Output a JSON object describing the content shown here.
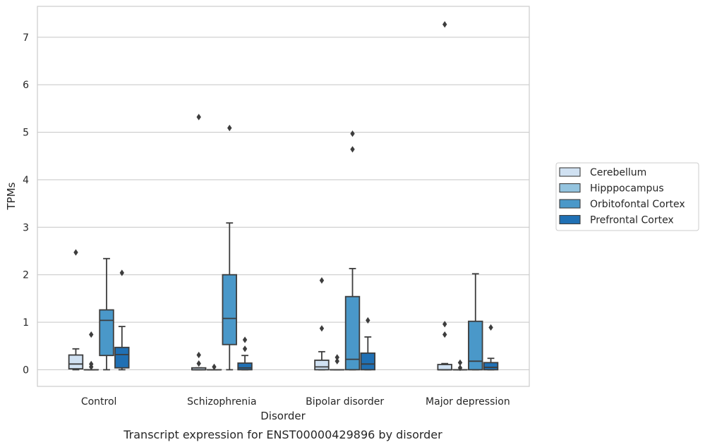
{
  "chart_data": {
    "type": "box",
    "title": "",
    "caption": "Transcript expression for ENST00000429896 by disorder",
    "xlabel": "Disorder",
    "ylabel": "TPMs",
    "ylim": [
      -0.35,
      7.65
    ],
    "yticks": [
      0,
      1,
      2,
      3,
      4,
      5,
      6,
      7
    ],
    "grid": "horizontal",
    "legend_position": "right",
    "categories": [
      "Control",
      "Schizophrenia",
      "Bipolar disorder",
      "Major depression"
    ],
    "series": [
      {
        "name": "Cerebellum",
        "color": "#d0e1f2",
        "boxes": [
          {
            "q1": 0.02,
            "median": 0.12,
            "q3": 0.31,
            "whisker_low": 0.0,
            "whisker_high": 0.44,
            "outliers": [
              2.47
            ]
          },
          {
            "q1": 0.0,
            "median": 0.0,
            "q3": 0.04,
            "whisker_low": 0.0,
            "whisker_high": 0.04,
            "outliers": [
              0.13,
              0.31,
              5.32
            ]
          },
          {
            "q1": 0.0,
            "median": 0.06,
            "q3": 0.2,
            "whisker_low": 0.0,
            "whisker_high": 0.38,
            "outliers": [
              0.87,
              1.88
            ]
          },
          {
            "q1": 0.0,
            "median": 0.0,
            "q3": 0.11,
            "whisker_low": 0.0,
            "whisker_high": 0.13,
            "outliers": [
              0.74,
              0.96,
              7.27
            ]
          }
        ]
      },
      {
        "name": "Hipppocampus",
        "color": "#94c4df",
        "boxes": [
          {
            "q1": 0.0,
            "median": 0.0,
            "q3": 0.0,
            "whisker_low": 0.0,
            "whisker_high": 0.0,
            "outliers": [
              0.06,
              0.12,
              0.74
            ]
          },
          {
            "q1": 0.0,
            "median": 0.0,
            "q3": 0.0,
            "whisker_low": 0.0,
            "whisker_high": 0.0,
            "outliers": [
              0.06
            ]
          },
          {
            "q1": 0.0,
            "median": 0.0,
            "q3": 0.0,
            "whisker_low": 0.0,
            "whisker_high": 0.0,
            "outliers": [
              0.18,
              0.26
            ]
          },
          {
            "q1": 0.0,
            "median": 0.0,
            "q3": 0.0,
            "whisker_low": 0.0,
            "whisker_high": 0.0,
            "outliers": [
              0.04,
              0.15
            ]
          }
        ]
      },
      {
        "name": "Orbitofontal Cortex",
        "color": "#4a98c9",
        "boxes": [
          {
            "q1": 0.3,
            "median": 1.04,
            "q3": 1.26,
            "whisker_low": 0.0,
            "whisker_high": 2.34,
            "outliers": []
          },
          {
            "q1": 0.53,
            "median": 1.08,
            "q3": 2.0,
            "whisker_low": 0.0,
            "whisker_high": 3.09,
            "outliers": [
              5.09
            ]
          },
          {
            "q1": 0.0,
            "median": 0.22,
            "q3": 1.54,
            "whisker_low": 0.0,
            "whisker_high": 2.13,
            "outliers": [
              4.64,
              4.97
            ]
          },
          {
            "q1": 0.0,
            "median": 0.18,
            "q3": 1.02,
            "whisker_low": 0.0,
            "whisker_high": 2.02,
            "outliers": []
          }
        ]
      },
      {
        "name": "Prefrontal Cortex",
        "color": "#2070b4",
        "boxes": [
          {
            "q1": 0.04,
            "median": 0.32,
            "q3": 0.47,
            "whisker_low": 0.0,
            "whisker_high": 0.91,
            "outliers": [
              2.04
            ]
          },
          {
            "q1": 0.0,
            "median": 0.04,
            "q3": 0.14,
            "whisker_low": 0.0,
            "whisker_high": 0.3,
            "outliers": [
              0.44,
              0.63
            ]
          },
          {
            "q1": 0.0,
            "median": 0.12,
            "q3": 0.35,
            "whisker_low": 0.0,
            "whisker_high": 0.69,
            "outliers": [
              1.04
            ]
          },
          {
            "q1": 0.0,
            "median": 0.05,
            "q3": 0.15,
            "whisker_low": 0.0,
            "whisker_high": 0.24,
            "outliers": [
              0.89
            ]
          }
        ]
      }
    ]
  }
}
